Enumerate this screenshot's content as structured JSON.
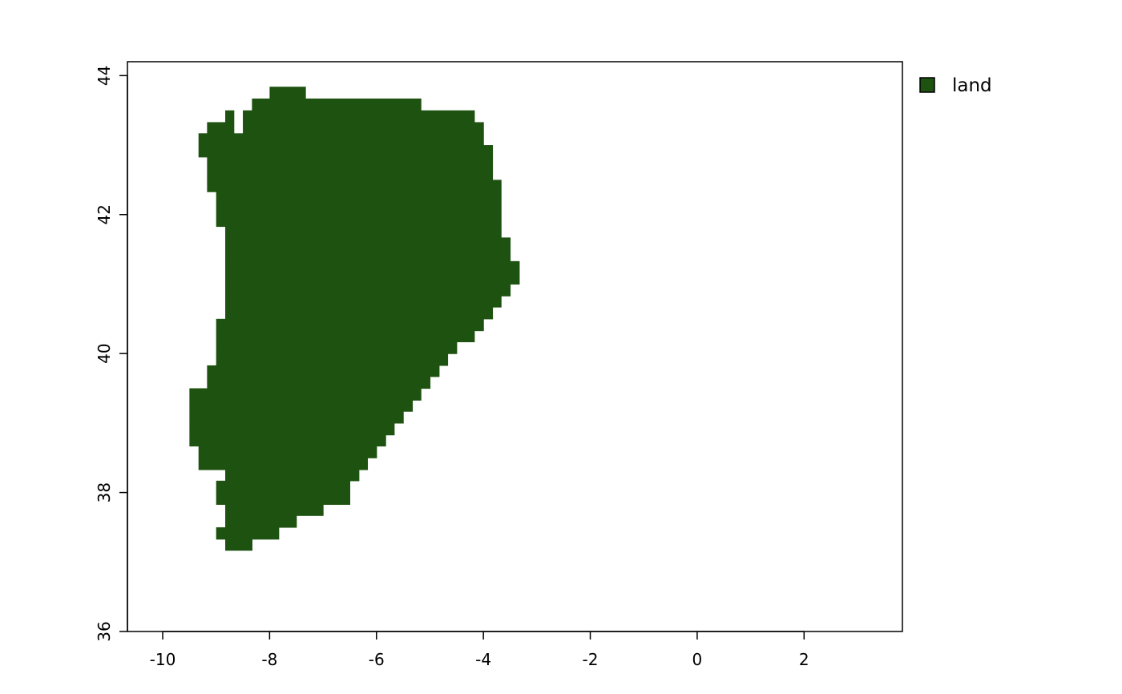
{
  "chart_data": {
    "type": "heatmap",
    "title": "",
    "xlabel": "",
    "ylabel": "",
    "xlim": [
      -10.66,
      3.84
    ],
    "ylim": [
      36,
      44.2
    ],
    "x_ticks": [
      -10,
      -8,
      -6,
      -4,
      -2,
      0,
      2
    ],
    "y_ticks": [
      36,
      38,
      40,
      42,
      44
    ],
    "grid": false,
    "legend": {
      "placement": "top-right outside plot",
      "entries": [
        {
          "label": "land",
          "color": "#1e5210"
        }
      ]
    },
    "raster": {
      "category": "land",
      "color": "#1e5210",
      "cell_size_deg": [
        0.1667,
        0.1667
      ],
      "rows_from_north_as_lat_and_lon_extents": [
        {
          "lat": [
            43.67,
            43.84
          ],
          "lon": [
            [
              -8.0,
              -7.33
            ]
          ]
        },
        {
          "lat": [
            43.5,
            43.67
          ],
          "lon": [
            [
              -8.33,
              -5.17
            ]
          ]
        },
        {
          "lat": [
            43.33,
            43.5
          ],
          "lon": [
            [
              -8.83,
              -8.67
            ],
            [
              -8.5,
              -4.17
            ]
          ]
        },
        {
          "lat": [
            43.17,
            43.33
          ],
          "lon": [
            [
              -9.17,
              -8.67
            ],
            [
              -8.5,
              -4.0
            ]
          ]
        },
        {
          "lat": [
            43.0,
            43.17
          ],
          "lon": [
            [
              -9.33,
              -4.0
            ]
          ]
        },
        {
          "lat": [
            42.83,
            43.0
          ],
          "lon": [
            [
              -9.33,
              -3.83
            ]
          ]
        },
        {
          "lat": [
            42.5,
            42.83
          ],
          "lon": [
            [
              -9.17,
              -3.83
            ]
          ]
        },
        {
          "lat": [
            42.33,
            42.5
          ],
          "lon": [
            [
              -9.17,
              -3.67
            ]
          ]
        },
        {
          "lat": [
            41.83,
            42.33
          ],
          "lon": [
            [
              -9.0,
              -3.67
            ]
          ]
        },
        {
          "lat": [
            41.67,
            41.83
          ],
          "lon": [
            [
              -8.83,
              -3.67
            ]
          ]
        },
        {
          "lat": [
            41.33,
            41.67
          ],
          "lon": [
            [
              -8.83,
              -3.5
            ]
          ]
        },
        {
          "lat": [
            41.0,
            41.33
          ],
          "lon": [
            [
              -8.83,
              -3.33
            ]
          ]
        },
        {
          "lat": [
            40.83,
            41.0
          ],
          "lon": [
            [
              -8.83,
              -3.5
            ]
          ]
        },
        {
          "lat": [
            40.67,
            40.83
          ],
          "lon": [
            [
              -8.83,
              -3.67
            ]
          ]
        },
        {
          "lat": [
            40.5,
            40.67
          ],
          "lon": [
            [
              -8.83,
              -3.83
            ]
          ]
        },
        {
          "lat": [
            40.33,
            40.5
          ],
          "lon": [
            [
              -9.0,
              -4.0
            ]
          ]
        },
        {
          "lat": [
            40.17,
            40.33
          ],
          "lon": [
            [
              -9.0,
              -4.17
            ]
          ]
        },
        {
          "lat": [
            40.0,
            40.17
          ],
          "lon": [
            [
              -9.0,
              -4.5
            ]
          ]
        },
        {
          "lat": [
            39.83,
            40.0
          ],
          "lon": [
            [
              -9.0,
              -4.67
            ]
          ]
        },
        {
          "lat": [
            39.67,
            39.83
          ],
          "lon": [
            [
              -9.17,
              -4.83
            ]
          ]
        },
        {
          "lat": [
            39.5,
            39.67
          ],
          "lon": [
            [
              -9.17,
              -5.0
            ]
          ]
        },
        {
          "lat": [
            39.33,
            39.5
          ],
          "lon": [
            [
              -9.5,
              -5.17
            ]
          ]
        },
        {
          "lat": [
            39.17,
            39.33
          ],
          "lon": [
            [
              -9.5,
              -5.33
            ]
          ]
        },
        {
          "lat": [
            39.0,
            39.17
          ],
          "lon": [
            [
              -9.5,
              -5.5
            ]
          ]
        },
        {
          "lat": [
            38.83,
            39.0
          ],
          "lon": [
            [
              -9.5,
              -5.67
            ]
          ]
        },
        {
          "lat": [
            38.67,
            38.83
          ],
          "lon": [
            [
              -9.5,
              -5.83
            ]
          ]
        },
        {
          "lat": [
            38.5,
            38.67
          ],
          "lon": [
            [
              -9.33,
              -6.0
            ]
          ]
        },
        {
          "lat": [
            38.33,
            38.5
          ],
          "lon": [
            [
              -9.33,
              -6.17
            ]
          ]
        },
        {
          "lat": [
            38.17,
            38.33
          ],
          "lon": [
            [
              -8.83,
              -6.33
            ]
          ]
        },
        {
          "lat": [
            38.0,
            38.17
          ],
          "lon": [
            [
              -9.0,
              -6.5
            ]
          ]
        },
        {
          "lat": [
            37.83,
            38.0
          ],
          "lon": [
            [
              -9.0,
              -6.5
            ]
          ]
        },
        {
          "lat": [
            37.67,
            37.83
          ],
          "lon": [
            [
              -8.83,
              -7.0
            ]
          ]
        },
        {
          "lat": [
            37.5,
            37.67
          ],
          "lon": [
            [
              -8.83,
              -7.5
            ]
          ]
        },
        {
          "lat": [
            37.33,
            37.5
          ],
          "lon": [
            [
              -9.0,
              -7.83
            ]
          ]
        },
        {
          "lat": [
            37.17,
            37.33
          ],
          "lon": [
            [
              -8.83,
              -8.33
            ]
          ]
        }
      ]
    }
  }
}
